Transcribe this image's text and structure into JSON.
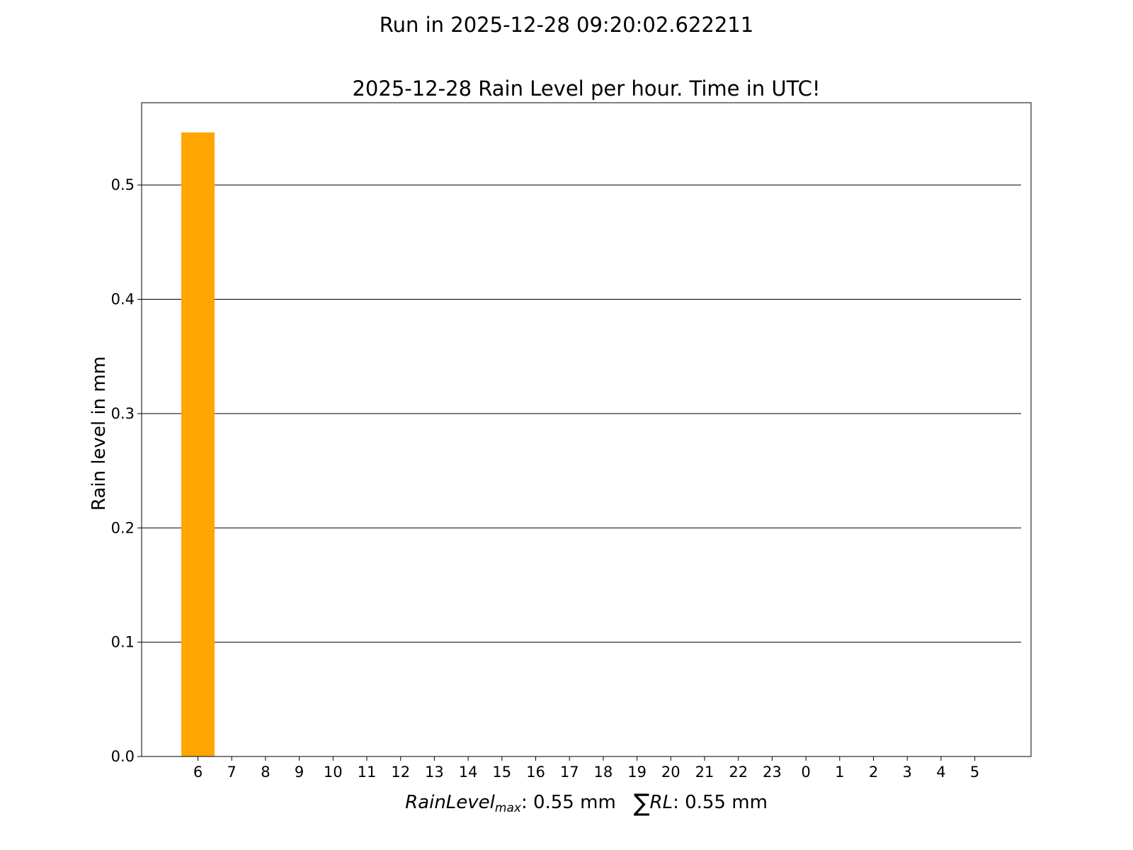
{
  "suptitle": "Run in 2025-12-28 09:20:02.622211",
  "chart_data": {
    "type": "bar",
    "title": "2025-12-28 Rain Level per hour. Time in UTC!",
    "xlabel": {
      "max_label": "RainLevel",
      "max_sub": "max",
      "max_value": ": 0.55 mm",
      "sum_symbol": "∑",
      "sum_label": "RL",
      "sum_value": ": 0.55 mm"
    },
    "ylabel": "Rain level in mm",
    "categories": [
      "6",
      "7",
      "8",
      "9",
      "10",
      "11",
      "12",
      "13",
      "14",
      "15",
      "16",
      "17",
      "18",
      "19",
      "20",
      "21",
      "22",
      "23",
      "0",
      "1",
      "2",
      "3",
      "4",
      "5"
    ],
    "values": [
      0.546,
      0,
      0,
      0,
      0,
      0,
      0,
      0,
      0,
      0,
      0,
      0,
      0,
      0,
      0,
      0,
      0,
      0,
      0,
      0,
      0,
      0,
      0,
      0
    ],
    "ylim": [
      0,
      0.572
    ],
    "yticks": [
      "0.0",
      "0.1",
      "0.2",
      "0.3",
      "0.4",
      "0.5"
    ],
    "grid": "horizontal",
    "bar_color": "#FFA500"
  }
}
